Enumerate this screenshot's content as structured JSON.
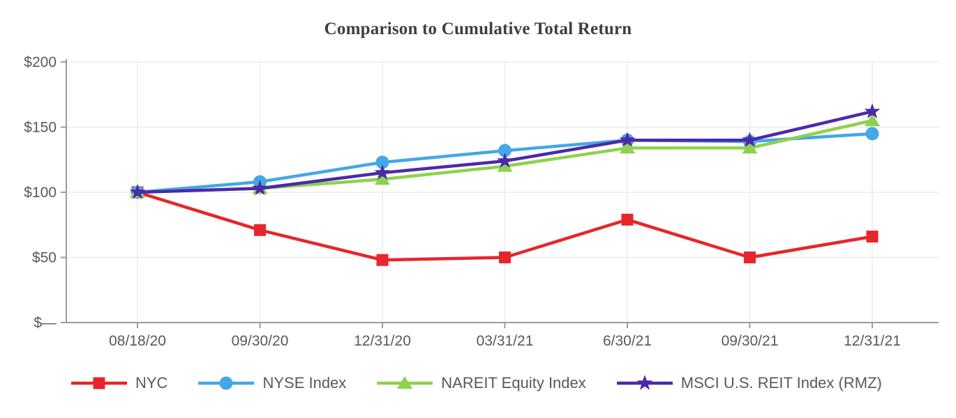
{
  "chart_data": {
    "type": "line",
    "title": "Comparison to Cumulative Total Return",
    "xlabel": "",
    "ylabel": "",
    "x_categories": [
      "08/18/20",
      "09/30/20",
      "12/31/20",
      "03/31/21",
      "6/30/21",
      "09/30/21",
      "12/31/21"
    ],
    "y_ticks": [
      {
        "value": 200,
        "label": "$200"
      },
      {
        "value": 150,
        "label": "$150"
      },
      {
        "value": 100,
        "label": "$100"
      },
      {
        "value": 50,
        "label": "$50"
      },
      {
        "value": 0,
        "label": "$—"
      }
    ],
    "ylim": [
      0,
      200
    ],
    "grid": true,
    "legend_position": "bottom",
    "series": [
      {
        "name": "NYC",
        "color": "#E6262A",
        "marker": "square",
        "values": [
          100,
          71,
          48,
          50,
          79,
          50,
          66
        ]
      },
      {
        "name": "NYSE Index",
        "color": "#45A6E8",
        "marker": "circle",
        "values": [
          100,
          108,
          123,
          132,
          140,
          139,
          145
        ]
      },
      {
        "name": "NAREIT Equity Index",
        "color": "#8DD24E",
        "marker": "triangle",
        "values": [
          100,
          103,
          110,
          120,
          134,
          134,
          155
        ]
      },
      {
        "name": "MSCI U.S. REIT Index (RMZ)",
        "color": "#4B2AA8",
        "marker": "star",
        "values": [
          100,
          103,
          115,
          124,
          140,
          140,
          162
        ]
      }
    ],
    "colors": {
      "axis": "#9B9B9B",
      "grid": "#ECECEC",
      "tick_label": "#595959",
      "title": "#3F3F3F"
    }
  }
}
